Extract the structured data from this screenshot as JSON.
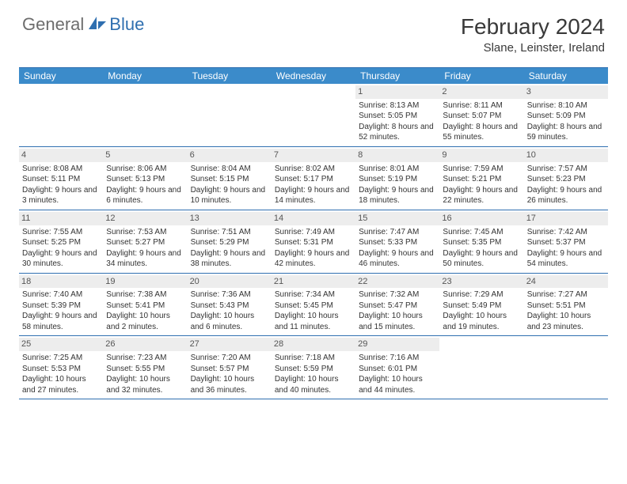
{
  "logo": {
    "text1": "General",
    "text2": "Blue"
  },
  "title": "February 2024",
  "location": "Slane, Leinster, Ireland",
  "colors": {
    "header_bar": "#3b8bca",
    "accent_border": "#2f6fb0",
    "daynum_bg": "#ededed",
    "text": "#333333",
    "logo_grey": "#6d6d6d",
    "logo_blue": "#2f6fb0"
  },
  "dow": [
    "Sunday",
    "Monday",
    "Tuesday",
    "Wednesday",
    "Thursday",
    "Friday",
    "Saturday"
  ],
  "weeks": [
    [
      {
        "n": "",
        "sr": "",
        "ss": "",
        "dl": ""
      },
      {
        "n": "",
        "sr": "",
        "ss": "",
        "dl": ""
      },
      {
        "n": "",
        "sr": "",
        "ss": "",
        "dl": ""
      },
      {
        "n": "",
        "sr": "",
        "ss": "",
        "dl": ""
      },
      {
        "n": "1",
        "sr": "Sunrise: 8:13 AM",
        "ss": "Sunset: 5:05 PM",
        "dl": "Daylight: 8 hours and 52 minutes."
      },
      {
        "n": "2",
        "sr": "Sunrise: 8:11 AM",
        "ss": "Sunset: 5:07 PM",
        "dl": "Daylight: 8 hours and 55 minutes."
      },
      {
        "n": "3",
        "sr": "Sunrise: 8:10 AM",
        "ss": "Sunset: 5:09 PM",
        "dl": "Daylight: 8 hours and 59 minutes."
      }
    ],
    [
      {
        "n": "4",
        "sr": "Sunrise: 8:08 AM",
        "ss": "Sunset: 5:11 PM",
        "dl": "Daylight: 9 hours and 3 minutes."
      },
      {
        "n": "5",
        "sr": "Sunrise: 8:06 AM",
        "ss": "Sunset: 5:13 PM",
        "dl": "Daylight: 9 hours and 6 minutes."
      },
      {
        "n": "6",
        "sr": "Sunrise: 8:04 AM",
        "ss": "Sunset: 5:15 PM",
        "dl": "Daylight: 9 hours and 10 minutes."
      },
      {
        "n": "7",
        "sr": "Sunrise: 8:02 AM",
        "ss": "Sunset: 5:17 PM",
        "dl": "Daylight: 9 hours and 14 minutes."
      },
      {
        "n": "8",
        "sr": "Sunrise: 8:01 AM",
        "ss": "Sunset: 5:19 PM",
        "dl": "Daylight: 9 hours and 18 minutes."
      },
      {
        "n": "9",
        "sr": "Sunrise: 7:59 AM",
        "ss": "Sunset: 5:21 PM",
        "dl": "Daylight: 9 hours and 22 minutes."
      },
      {
        "n": "10",
        "sr": "Sunrise: 7:57 AM",
        "ss": "Sunset: 5:23 PM",
        "dl": "Daylight: 9 hours and 26 minutes."
      }
    ],
    [
      {
        "n": "11",
        "sr": "Sunrise: 7:55 AM",
        "ss": "Sunset: 5:25 PM",
        "dl": "Daylight: 9 hours and 30 minutes."
      },
      {
        "n": "12",
        "sr": "Sunrise: 7:53 AM",
        "ss": "Sunset: 5:27 PM",
        "dl": "Daylight: 9 hours and 34 minutes."
      },
      {
        "n": "13",
        "sr": "Sunrise: 7:51 AM",
        "ss": "Sunset: 5:29 PM",
        "dl": "Daylight: 9 hours and 38 minutes."
      },
      {
        "n": "14",
        "sr": "Sunrise: 7:49 AM",
        "ss": "Sunset: 5:31 PM",
        "dl": "Daylight: 9 hours and 42 minutes."
      },
      {
        "n": "15",
        "sr": "Sunrise: 7:47 AM",
        "ss": "Sunset: 5:33 PM",
        "dl": "Daylight: 9 hours and 46 minutes."
      },
      {
        "n": "16",
        "sr": "Sunrise: 7:45 AM",
        "ss": "Sunset: 5:35 PM",
        "dl": "Daylight: 9 hours and 50 minutes."
      },
      {
        "n": "17",
        "sr": "Sunrise: 7:42 AM",
        "ss": "Sunset: 5:37 PM",
        "dl": "Daylight: 9 hours and 54 minutes."
      }
    ],
    [
      {
        "n": "18",
        "sr": "Sunrise: 7:40 AM",
        "ss": "Sunset: 5:39 PM",
        "dl": "Daylight: 9 hours and 58 minutes."
      },
      {
        "n": "19",
        "sr": "Sunrise: 7:38 AM",
        "ss": "Sunset: 5:41 PM",
        "dl": "Daylight: 10 hours and 2 minutes."
      },
      {
        "n": "20",
        "sr": "Sunrise: 7:36 AM",
        "ss": "Sunset: 5:43 PM",
        "dl": "Daylight: 10 hours and 6 minutes."
      },
      {
        "n": "21",
        "sr": "Sunrise: 7:34 AM",
        "ss": "Sunset: 5:45 PM",
        "dl": "Daylight: 10 hours and 11 minutes."
      },
      {
        "n": "22",
        "sr": "Sunrise: 7:32 AM",
        "ss": "Sunset: 5:47 PM",
        "dl": "Daylight: 10 hours and 15 minutes."
      },
      {
        "n": "23",
        "sr": "Sunrise: 7:29 AM",
        "ss": "Sunset: 5:49 PM",
        "dl": "Daylight: 10 hours and 19 minutes."
      },
      {
        "n": "24",
        "sr": "Sunrise: 7:27 AM",
        "ss": "Sunset: 5:51 PM",
        "dl": "Daylight: 10 hours and 23 minutes."
      }
    ],
    [
      {
        "n": "25",
        "sr": "Sunrise: 7:25 AM",
        "ss": "Sunset: 5:53 PM",
        "dl": "Daylight: 10 hours and 27 minutes."
      },
      {
        "n": "26",
        "sr": "Sunrise: 7:23 AM",
        "ss": "Sunset: 5:55 PM",
        "dl": "Daylight: 10 hours and 32 minutes."
      },
      {
        "n": "27",
        "sr": "Sunrise: 7:20 AM",
        "ss": "Sunset: 5:57 PM",
        "dl": "Daylight: 10 hours and 36 minutes."
      },
      {
        "n": "28",
        "sr": "Sunrise: 7:18 AM",
        "ss": "Sunset: 5:59 PM",
        "dl": "Daylight: 10 hours and 40 minutes."
      },
      {
        "n": "29",
        "sr": "Sunrise: 7:16 AM",
        "ss": "Sunset: 6:01 PM",
        "dl": "Daylight: 10 hours and 44 minutes."
      },
      {
        "n": "",
        "sr": "",
        "ss": "",
        "dl": ""
      },
      {
        "n": "",
        "sr": "",
        "ss": "",
        "dl": ""
      }
    ]
  ]
}
